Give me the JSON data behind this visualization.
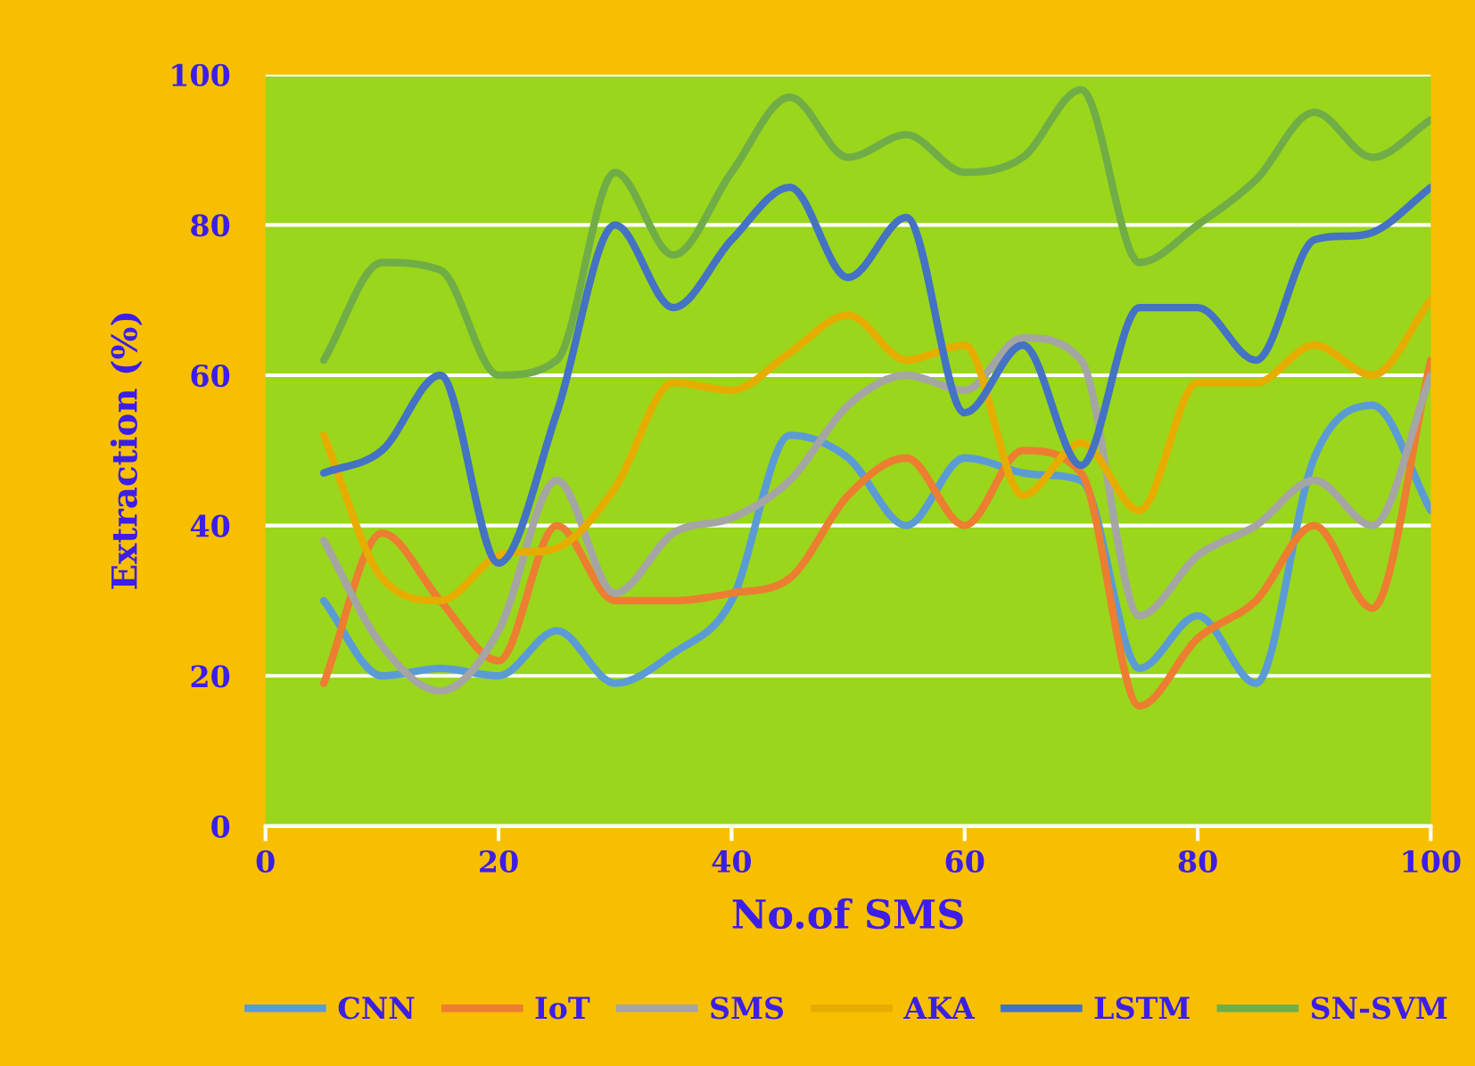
{
  "chart_data": {
    "type": "line",
    "xlabel": "No.of SMS",
    "ylabel": "Extraction (%)",
    "x": [
      5,
      10,
      15,
      20,
      25,
      30,
      35,
      40,
      45,
      50,
      55,
      60,
      65,
      70,
      75,
      80,
      85,
      90,
      95,
      100
    ],
    "xlim": [
      0,
      100
    ],
    "xticks": [
      0,
      20,
      40,
      60,
      80,
      100
    ],
    "ylim": [
      0,
      100
    ],
    "yticks": [
      0,
      20,
      40,
      60,
      80,
      100
    ],
    "grid": "y",
    "legend": "bottom",
    "line_style": "solid",
    "series": [
      {
        "name": "CNN",
        "color": "#5b9bd5",
        "values": [
          30,
          20,
          21,
          20,
          26,
          19,
          23,
          30,
          52,
          49,
          40,
          49,
          47,
          46,
          21,
          28,
          19,
          49,
          56,
          42
        ]
      },
      {
        "name": "IoT",
        "color": "#ed7d31",
        "values": [
          19,
          39,
          30,
          22,
          40,
          30,
          30,
          31,
          33,
          44,
          49,
          40,
          50,
          47,
          16,
          25,
          30,
          40,
          29,
          62
        ]
      },
      {
        "name": "SMS",
        "color": "#a5a5a5",
        "values": [
          38,
          24,
          18,
          26,
          46,
          31,
          39,
          41,
          46,
          56,
          60,
          58,
          65,
          62,
          28,
          36,
          40,
          46,
          40,
          60
        ]
      },
      {
        "name": "AKA",
        "color": "#e6ad00",
        "values": [
          52,
          33,
          30,
          36,
          37,
          45,
          59,
          58,
          63,
          68,
          62,
          64,
          44,
          51,
          42,
          59,
          59,
          64,
          60,
          70
        ]
      },
      {
        "name": "LSTM",
        "color": "#4472c4",
        "values": [
          47,
          50,
          60,
          35,
          55,
          80,
          69,
          78,
          85,
          73,
          81,
          55,
          64,
          48,
          69,
          69,
          62,
          78,
          79,
          85
        ]
      },
      {
        "name": "SN-SVM",
        "color": "#70ad47",
        "values": [
          62,
          75,
          74,
          60,
          62,
          87,
          76,
          87,
          97,
          89,
          92,
          87,
          89,
          98,
          75,
          80,
          86,
          95,
          89,
          94
        ]
      }
    ]
  }
}
